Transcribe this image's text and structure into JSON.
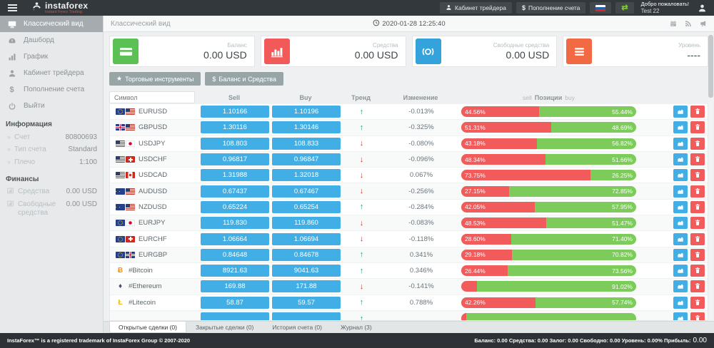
{
  "header": {
    "logo": {
      "title": "instaforex",
      "subtitle": "Instant Forex Trading"
    },
    "buttons": {
      "cabinet": "Кабинет трейдера",
      "deposit": "Пополнение счета"
    },
    "welcome": {
      "line1": "Добро пожаловать!",
      "line2": "Test 22"
    }
  },
  "sidebar": {
    "items": [
      {
        "label": "Классический вид",
        "icon": "desktop",
        "active": true
      },
      {
        "label": "Дашборд",
        "icon": "gauge",
        "active": false
      },
      {
        "label": "График",
        "icon": "chart",
        "active": false
      },
      {
        "label": "Кабинет трейдера",
        "icon": "user",
        "active": false
      },
      {
        "label": "Пополнение счета",
        "icon": "dollar",
        "active": false
      },
      {
        "label": "Выйти",
        "icon": "power",
        "active": false
      }
    ],
    "info": {
      "title": "Информация",
      "rows": [
        {
          "label": "Счет",
          "value": "80800693"
        },
        {
          "label": "Тип счета",
          "value": "Standard"
        },
        {
          "label": "Плечо",
          "value": "1:100"
        }
      ]
    },
    "finance": {
      "title": "Финансы",
      "rows": [
        {
          "label": "Средства",
          "value": "0.00 USD"
        },
        {
          "label": "Свободные средства",
          "value": "0.00 USD"
        }
      ]
    }
  },
  "panel": {
    "title": "Классический вид",
    "datetime": "2020-01-28 12:25:40"
  },
  "cards": [
    {
      "label": "Баланс",
      "value": "0.00 USD",
      "icon": "credit-card",
      "color": "#5bc154"
    },
    {
      "label": "Средства",
      "value": "0.00 USD",
      "icon": "bar-chart",
      "color": "#f25a5a"
    },
    {
      "label": "Свободные средства",
      "value": "0.00 USD",
      "icon": "coin",
      "color": "#35a3db"
    },
    {
      "label": "Уровень",
      "value": "----",
      "icon": "list",
      "color": "#f26a44"
    }
  ],
  "toolbar": {
    "instruments": "Торговые инструменты",
    "balance": "Баланс и Средства"
  },
  "table": {
    "filter_placeholder": "Символ",
    "headers": {
      "sell": "Sell",
      "buy": "Buy",
      "trend": "Тренд",
      "change": "Изменение",
      "pos_sell": "sell",
      "pos_mid": "Позиции",
      "pos_buy": "buy"
    },
    "rows": [
      {
        "symbol": "EURUSD",
        "flags": [
          "eu",
          "us"
        ],
        "sell": "1.10166",
        "buy": "1.10196",
        "trend": "up",
        "change": "-0.013%",
        "sell_pct": "44.56%",
        "buy_pct": "55.44%",
        "sell_width": 44.56
      },
      {
        "symbol": "GBPUSD",
        "flags": [
          "gb",
          "us"
        ],
        "sell": "1.30116",
        "buy": "1.30146",
        "trend": "up",
        "change": "-0.325%",
        "sell_pct": "51.31%",
        "buy_pct": "48.69%",
        "sell_width": 51.31
      },
      {
        "symbol": "USDJPY",
        "flags": [
          "us",
          "jp"
        ],
        "sell": "108.803",
        "buy": "108.833",
        "trend": "down",
        "change": "-0.080%",
        "sell_pct": "43.18%",
        "buy_pct": "56.82%",
        "sell_width": 43.18
      },
      {
        "symbol": "USDCHF",
        "flags": [
          "us",
          "ch"
        ],
        "sell": "0.96817",
        "buy": "0.96847",
        "trend": "down",
        "change": "-0.096%",
        "sell_pct": "48.34%",
        "buy_pct": "51.66%",
        "sell_width": 48.34
      },
      {
        "symbol": "USDCAD",
        "flags": [
          "us",
          "ca"
        ],
        "sell": "1.31988",
        "buy": "1.32018",
        "trend": "down",
        "change": "0.067%",
        "sell_pct": "73.75%",
        "buy_pct": "26.25%",
        "sell_width": 73.75
      },
      {
        "symbol": "AUDUSD",
        "flags": [
          "au",
          "us"
        ],
        "sell": "0.67437",
        "buy": "0.67467",
        "trend": "down",
        "change": "-0.256%",
        "sell_pct": "27.15%",
        "buy_pct": "72.85%",
        "sell_width": 27.15
      },
      {
        "symbol": "NZDUSD",
        "flags": [
          "nz",
          "us"
        ],
        "sell": "0.65224",
        "buy": "0.65254",
        "trend": "up",
        "change": "-0.284%",
        "sell_pct": "42.05%",
        "buy_pct": "57.95%",
        "sell_width": 42.05
      },
      {
        "symbol": "EURJPY",
        "flags": [
          "eu",
          "jp"
        ],
        "sell": "119.830",
        "buy": "119.860",
        "trend": "down",
        "change": "-0.083%",
        "sell_pct": "48.53%",
        "buy_pct": "51.47%",
        "sell_width": 48.53
      },
      {
        "symbol": "EURCHF",
        "flags": [
          "eu",
          "ch"
        ],
        "sell": "1.06664",
        "buy": "1.06694",
        "trend": "down",
        "change": "-0.118%",
        "sell_pct": "28.60%",
        "buy_pct": "71.40%",
        "sell_width": 28.6
      },
      {
        "symbol": "EURGBP",
        "flags": [
          "eu",
          "gb"
        ],
        "sell": "0.84648",
        "buy": "0.84678",
        "trend": "up",
        "change": "0.341%",
        "sell_pct": "29.18%",
        "buy_pct": "70.82%",
        "sell_width": 29.18
      },
      {
        "symbol": "#Bitcoin",
        "crypto": {
          "glyph": "Ƀ",
          "color": "#f7931a"
        },
        "sell": "8921.63",
        "buy": "9041.63",
        "trend": "up",
        "change": "0.346%",
        "sell_pct": "26.44%",
        "buy_pct": "73.56%",
        "sell_width": 26.44
      },
      {
        "symbol": "#Ethereum",
        "crypto": {
          "glyph": "♦",
          "color": "#454a75"
        },
        "sell": "169.88",
        "buy": "171.88",
        "trend": "down",
        "change": "-0.141%",
        "sell_pct": "",
        "buy_pct": "91.02%",
        "sell_width": 8.98
      },
      {
        "symbol": "#Litecoin",
        "crypto": {
          "glyph": "Ł",
          "color": "#f0b90b"
        },
        "sell": "58.87",
        "buy": "59.57",
        "trend": "up",
        "change": "0.788%",
        "sell_pct": "42.26%",
        "buy_pct": "57.74%",
        "sell_width": 42.26
      },
      {
        "symbol": "",
        "flags": [],
        "sell": "",
        "buy": "",
        "trend": "up",
        "change": "",
        "sell_pct": "",
        "buy_pct": "",
        "sell_width": 3,
        "partial": true
      }
    ]
  },
  "tabs": [
    {
      "label": "Открытые сделки (0)",
      "active": true
    },
    {
      "label": "Закрытые сделки (0)",
      "active": false
    },
    {
      "label": "История счета (0)",
      "active": false
    },
    {
      "label": "Журнал (3)",
      "active": false
    }
  ],
  "footer": {
    "trademark": "InstaForex™ is a registered trademark of InstaForex Group © 2007-2020",
    "stats": "Баланс: 0.00 Средства: 0.00 Залог: 0.00 Свободно: 0.00 Уровень: 0.00% Прибыль:",
    "profit": "0.00"
  }
}
